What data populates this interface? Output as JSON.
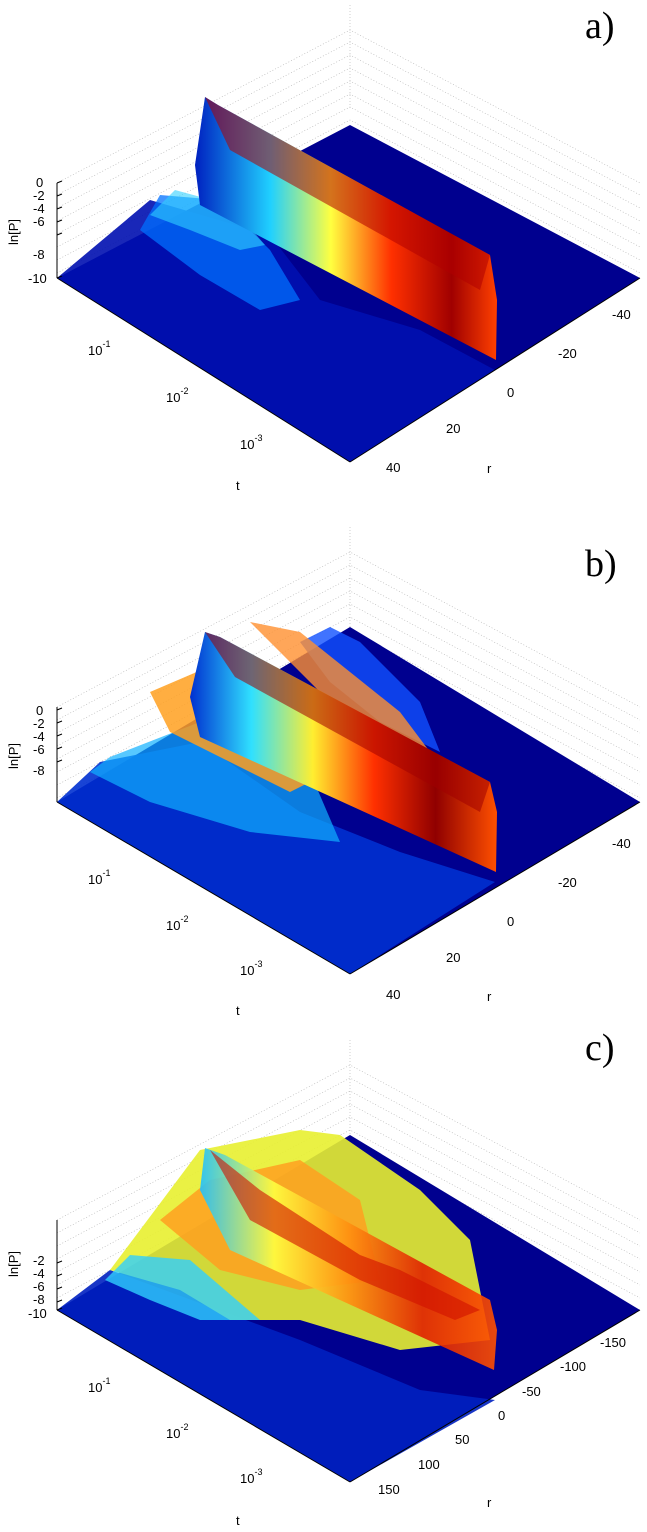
{
  "panels": [
    {
      "id": "a",
      "label": "a)",
      "chart_data": {
        "type": "surface",
        "zlabel": "ln[P]",
        "xlabel": "t",
        "ylabel": "r",
        "z_ticks": [
          "0",
          "-2",
          "-4",
          "-6",
          "-8",
          "-10"
        ],
        "t_ticks": [
          "10",
          "10",
          "10"
        ],
        "t_exponents": [
          "-1",
          "-2",
          "-3"
        ],
        "r_ticks": [
          "-40",
          "-20",
          "0",
          "20",
          "40"
        ],
        "t_scale": "log",
        "r_range": [
          -50,
          50
        ],
        "z_range": [
          -10,
          0
        ],
        "colormap": "jet"
      }
    },
    {
      "id": "b",
      "label": "b)",
      "chart_data": {
        "type": "surface",
        "zlabel": "ln[P]",
        "xlabel": "t",
        "ylabel": "r",
        "z_ticks": [
          "0",
          "-2",
          "-4",
          "-6",
          "-8"
        ],
        "t_ticks": [
          "10",
          "10",
          "10"
        ],
        "t_exponents": [
          "-1",
          "-2",
          "-3"
        ],
        "r_ticks": [
          "-40",
          "-20",
          "0",
          "20",
          "40"
        ],
        "t_scale": "log",
        "r_range": [
          -50,
          50
        ],
        "z_range": [
          -10,
          0
        ],
        "colormap": "jet"
      }
    },
    {
      "id": "c",
      "label": "c)",
      "chart_data": {
        "type": "surface",
        "zlabel": "ln[P]",
        "xlabel": "t",
        "ylabel": "r",
        "z_ticks": [
          "-2",
          "-4",
          "-6",
          "-8",
          "-10"
        ],
        "t_ticks": [
          "10",
          "10",
          "10"
        ],
        "t_exponents": [
          "-1",
          "-2",
          "-3"
        ],
        "r_ticks": [
          "-150",
          "-100",
          "-50",
          "0",
          "50",
          "100",
          "150"
        ],
        "t_scale": "log",
        "r_range": [
          -180,
          180
        ],
        "z_range": [
          -10,
          0
        ],
        "colormap": "jet"
      }
    }
  ]
}
